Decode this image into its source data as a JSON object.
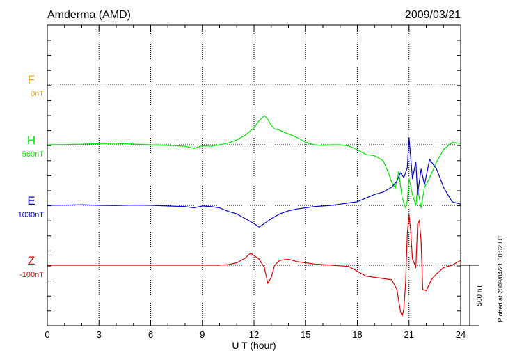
{
  "chart_data": {
    "type": "line",
    "title": "Amderma (AMD)",
    "date": "2009/03/21",
    "xlabel": "U T (hour)",
    "xlim": [
      0,
      24
    ],
    "x_ticks": [
      "0",
      "3",
      "6",
      "9",
      "12",
      "15",
      "18",
      "21",
      "24"
    ],
    "grid": true,
    "scale_label": "500 nT",
    "footer": "Plotted at 2009/04/21 00:52 UT",
    "series": [
      {
        "name": "F",
        "baseline_label": "0nT",
        "color": "#f5a700",
        "x": [],
        "y": []
      },
      {
        "name": "H",
        "baseline_label": "560nT",
        "color": "#00e600",
        "x": [
          0,
          1,
          2,
          3,
          4,
          5,
          6,
          7,
          8,
          8.5,
          9,
          9.5,
          10,
          10.5,
          11,
          11.5,
          12,
          12.3,
          12.6,
          12.8,
          13,
          13.2,
          13.5,
          13.8,
          14,
          14.5,
          15,
          15.5,
          16,
          16.5,
          17,
          17.5,
          18,
          18.5,
          19,
          19.5,
          19.8,
          20,
          20.2,
          20.4,
          20.6,
          20.8,
          20.9,
          21,
          21.2,
          21.4,
          21.5,
          21.7,
          21.9,
          22.1,
          22.3,
          22.6,
          23,
          23.5,
          24
        ],
        "y": [
          560,
          562,
          565,
          568,
          572,
          565,
          560,
          555,
          548,
          530,
          552,
          548,
          560,
          575,
          600,
          640,
          700,
          760,
          800,
          770,
          720,
          690,
          680,
          660,
          650,
          620,
          580,
          560,
          555,
          560,
          560,
          550,
          520,
          480,
          470,
          430,
          330,
          250,
          200,
          340,
          120,
          40,
          100,
          280,
          150,
          60,
          200,
          40,
          210,
          260,
          320,
          420,
          520,
          580,
          570
        ]
      },
      {
        "name": "E",
        "baseline_label": "1030nT",
        "color": "#0000d0",
        "x": [
          0,
          1,
          2,
          3,
          4,
          5,
          6,
          7,
          8,
          8.5,
          9,
          9.5,
          10,
          10.5,
          11,
          11.5,
          12,
          12.3,
          12.6,
          13,
          13.5,
          14,
          14.5,
          15,
          15.5,
          16,
          16.5,
          17,
          17.5,
          18,
          18.5,
          19,
          19.5,
          20,
          20.3,
          20.5,
          20.7,
          20.9,
          21,
          21.2,
          21.4,
          21.5,
          21.7,
          21.9,
          22.2,
          22.6,
          23,
          23.5,
          24
        ],
        "y": [
          1030,
          1032,
          1035,
          1030,
          1028,
          1032,
          1030,
          1025,
          1020,
          1010,
          1025,
          1020,
          1010,
          980,
          960,
          920,
          880,
          850,
          880,
          920,
          960,
          985,
          1000,
          1010,
          1020,
          1025,
          1030,
          1040,
          1050,
          1060,
          1090,
          1120,
          1140,
          1180,
          1230,
          1300,
          1260,
          1340,
          1590,
          1250,
          1390,
          1120,
          1330,
          1200,
          1410,
          1330,
          1180,
          1060,
          1040
        ]
      },
      {
        "name": "Z",
        "baseline_label": "-100nT",
        "color": "#e00000",
        "x": [
          0,
          1,
          2,
          3,
          4,
          5,
          6,
          7,
          8,
          9,
          10,
          10.5,
          11,
          11.5,
          11.8,
          12,
          12.3,
          12.6,
          12.8,
          13,
          13.2,
          13.5,
          14,
          14.5,
          15,
          15.5,
          16,
          16.5,
          17,
          17.5,
          18,
          18.5,
          19,
          19.5,
          20,
          20.3,
          20.5,
          20.6,
          20.7,
          20.8,
          20.9,
          21,
          21.1,
          21.2,
          21.3,
          21.4,
          21.5,
          21.6,
          21.7,
          21.8,
          22,
          22.3,
          22.6,
          23,
          23.5,
          24
        ],
        "y": [
          -100,
          -100,
          -100,
          -100,
          -100,
          -100,
          -100,
          -100,
          -100,
          -100,
          -100,
          -95,
          -80,
          -40,
          0,
          -20,
          -50,
          -120,
          -250,
          -200,
          -100,
          -60,
          -50,
          -70,
          -80,
          -90,
          -95,
          -100,
          -105,
          -110,
          -150,
          -190,
          -200,
          -210,
          -220,
          -300,
          -480,
          -520,
          -460,
          -250,
          160,
          320,
          180,
          -50,
          -80,
          -120,
          240,
          270,
          100,
          -300,
          -310,
          -220,
          -170,
          -120,
          -100,
          -60
        ]
      }
    ]
  }
}
